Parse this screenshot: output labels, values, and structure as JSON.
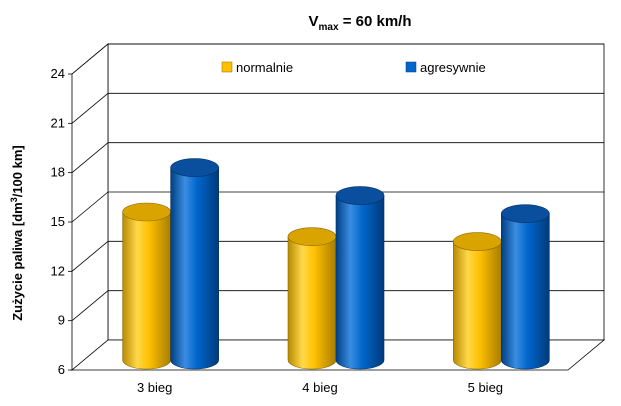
{
  "chart_data": {
    "type": "bar",
    "title": {
      "main": "V",
      "subscript": "max",
      "rest": " = 60 km/h"
    },
    "ylabel": {
      "main": "Zużycie paliwa [dm",
      "superscript": "3",
      "rest": "/100 km]"
    },
    "xlabel": "",
    "ylim": [
      6,
      24
    ],
    "yticks": [
      "6",
      "9",
      "12",
      "15",
      "18",
      "21",
      "24"
    ],
    "grid": true,
    "legend_position": "top",
    "categories": [
      "3 bieg",
      "4 bieg",
      "5 bieg"
    ],
    "series": [
      {
        "name": "normalnie",
        "color": "#ffc000",
        "values": [
          15.0,
          13.5,
          13.2
        ]
      },
      {
        "name": "agresywnie",
        "color": "#0066cc",
        "values": [
          17.7,
          16.0,
          14.9
        ]
      }
    ]
  }
}
